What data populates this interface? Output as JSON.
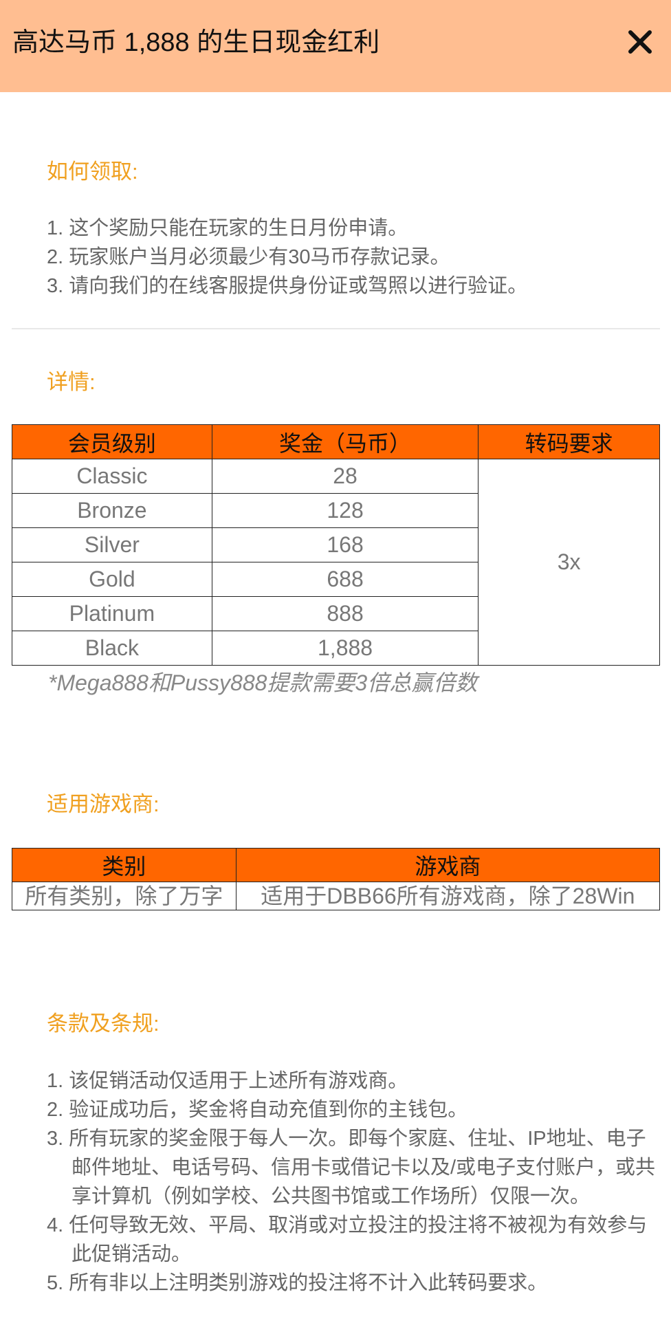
{
  "header": {
    "title": "高达马币 1,888 的生日现金红利"
  },
  "how_to_claim": {
    "heading": "如何领取:",
    "items": [
      "1. 这个奖励只能在玩家的生日月份申请。",
      "2. 玩家账户当月必须最少有30马币存款记录。",
      "3. 请向我们的在线客服提供身份证或驾照以进行验证。"
    ]
  },
  "details": {
    "heading": "详情:",
    "table": {
      "columns": [
        "会员级别",
        "奖金（马币）",
        "转码要求"
      ],
      "rows": [
        [
          "Classic",
          "28"
        ],
        [
          "Bronze",
          "128"
        ],
        [
          "Silver",
          "168"
        ],
        [
          "Gold",
          "688"
        ],
        [
          "Platinum",
          "888"
        ],
        [
          "Black",
          "1,888"
        ]
      ],
      "rollover": "3x"
    },
    "note": "*Mega888和Pussy888提款需要3倍总赢倍数"
  },
  "providers": {
    "heading": "适用游戏商:",
    "table": {
      "columns": [
        "类别",
        "游戏商"
      ],
      "rows": [
        [
          "所有类别，除了万字",
          "适用于DBB66所有游戏商，除了28Win"
        ]
      ]
    }
  },
  "terms": {
    "heading": "条款及条规:",
    "items": [
      "1. 该促销活动仅适用于上述所有游戏商。",
      "2. 验证成功后，奖金将自动充值到你的主钱包。",
      "3. 所有玩家的奖金限于每人一次。即每个家庭、住址、IP地址、电子邮件地址、电话号码、信用卡或借记卡以及/或电子支付账户，或共享计算机（例如学校、公共图书馆或工作场所）仅限一次。",
      "4. 任何导致无效、平局、取消或对立投注的投注将不被视为有效参与此促销活动。",
      "5. 所有非以上注明类别游戏的投注将不计入此转码要求。"
    ]
  }
}
